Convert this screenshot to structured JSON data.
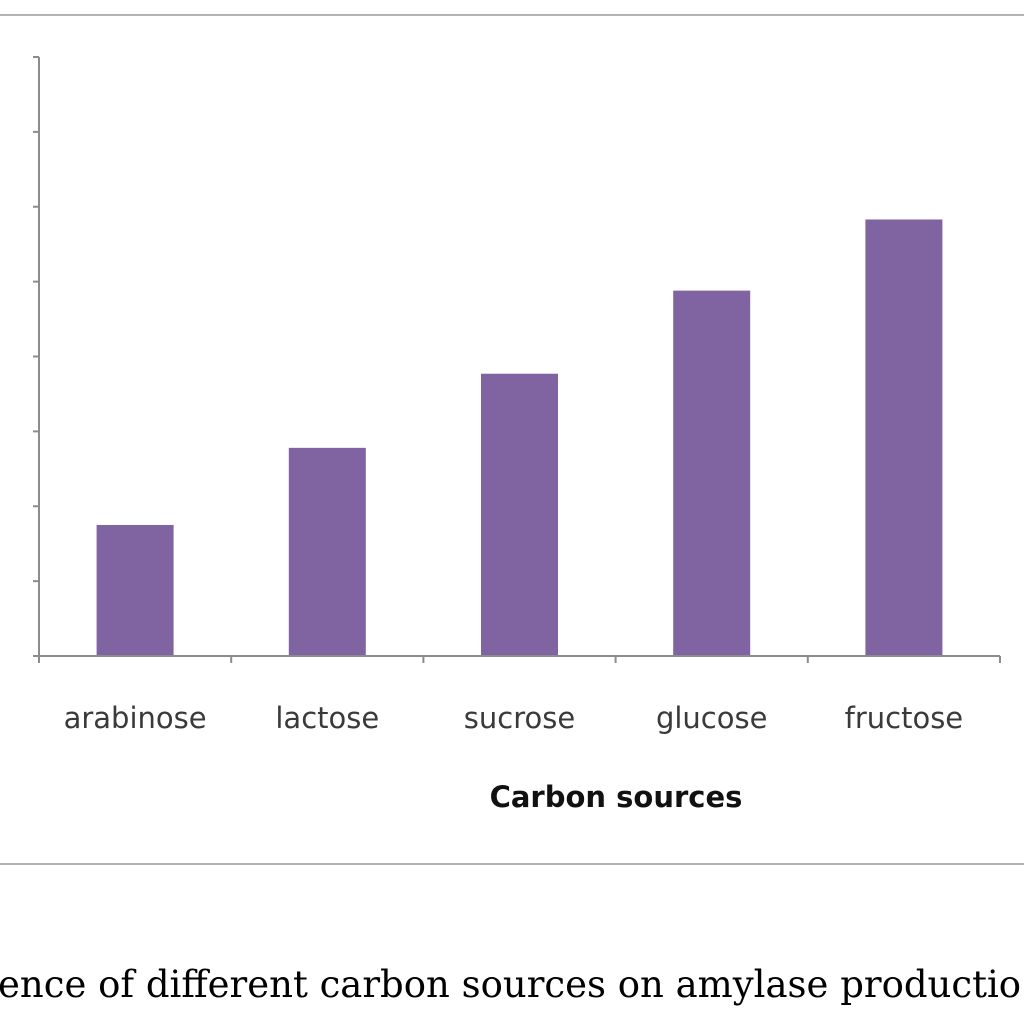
{
  "caption": "ence of different carbon sources on amylase productio",
  "chart_data": {
    "type": "bar",
    "categories": [
      "arabinose",
      "lactose",
      "sucrose",
      "glucose",
      "fructose"
    ],
    "values": [
      1.75,
      2.78,
      3.77,
      4.88,
      5.83
    ],
    "xlabel": "Carbon sources",
    "ylabel": "",
    "ylim": [
      0,
      8
    ],
    "ytick_step": 1,
    "ytick_labels_visible": false,
    "grid": false,
    "legend": "none",
    "colors": {
      "bar": "#8064a2",
      "axis": "#8c8c8c",
      "frame": "#b3b3b3"
    }
  }
}
